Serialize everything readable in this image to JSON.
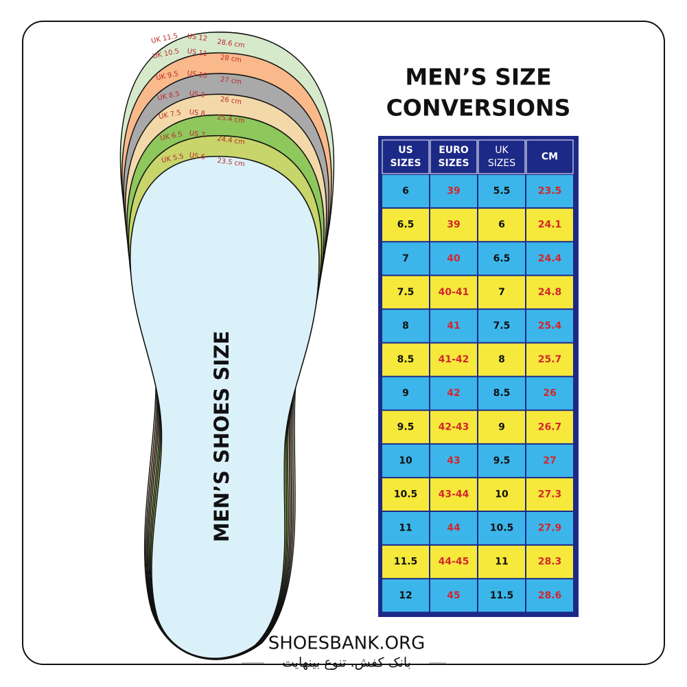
{
  "insole": {
    "side_text": "MEN’S SHOES SIZE",
    "layers": [
      {
        "uk": "UK 11.5",
        "us": "US 12",
        "cm": "28.6 cm"
      },
      {
        "uk": "UK 10.5",
        "us": "US 11",
        "cm": "28 cm"
      },
      {
        "uk": "UK 9.5",
        "us": "US 10",
        "cm": "27 cm"
      },
      {
        "uk": "UK 8.5",
        "us": "US 9",
        "cm": "26 cm"
      },
      {
        "uk": "UK 7.5",
        "us": "US 8",
        "cm": "25.4 cm"
      },
      {
        "uk": "UK 6.5",
        "us": "US 7",
        "cm": "24.4 cm"
      },
      {
        "uk": "UK 5.5",
        "us": "US 6",
        "cm": "23.5 cm"
      }
    ]
  },
  "header": {
    "title": [
      "MEN’S SIZE",
      "CONVERSIONS"
    ]
  },
  "table": {
    "columns": [
      [
        "US",
        "SIZES"
      ],
      [
        "EURO",
        "SIZES"
      ],
      [
        "UK",
        "SIZES"
      ],
      [
        "CM"
      ]
    ],
    "rows": [
      [
        "6",
        "39",
        "5.5",
        "23.5"
      ],
      [
        "6.5",
        "39",
        "6",
        "24.1"
      ],
      [
        "7",
        "40",
        "6.5",
        "24.4"
      ],
      [
        "7.5",
        "40-41",
        "7",
        "24.8"
      ],
      [
        "8",
        "41",
        "7.5",
        "25.4"
      ],
      [
        "8.5",
        "41-42",
        "8",
        "25.7"
      ],
      [
        "9",
        "42",
        "8.5",
        "26"
      ],
      [
        "9.5",
        "42-43",
        "9",
        "26.7"
      ],
      [
        "10",
        "43",
        "9.5",
        "27"
      ],
      [
        "10.5",
        "43-44",
        "10",
        "27.3"
      ],
      [
        "11",
        "44",
        "10.5",
        "27.9"
      ],
      [
        "11.5",
        "44-45",
        "11",
        "28.3"
      ],
      [
        "12",
        "45",
        "11.5",
        "28.6"
      ]
    ]
  },
  "footer": {
    "site": "SHOESBANK.ORG",
    "tagline": "بانک کفش، تنوع بینهایت"
  }
}
